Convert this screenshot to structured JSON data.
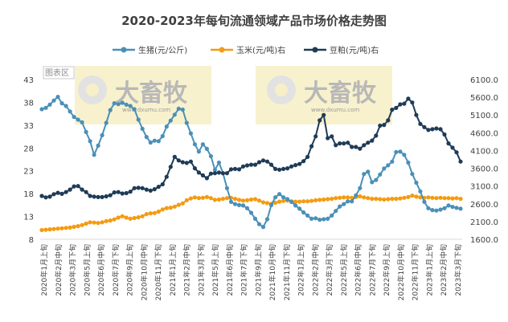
{
  "chart_data": {
    "type": "line",
    "title": "2020-2023年每旬流通领域产品市场价格走势图",
    "area_label": "图表区",
    "watermark": {
      "text": "大畜牧",
      "url": "www.dxumu.com"
    },
    "yaxis_left": {
      "ticks": [
        8,
        13,
        18,
        23,
        28,
        33,
        38,
        43
      ],
      "range": [
        8,
        43
      ]
    },
    "yaxis_right": {
      "ticks": [
        "1600.0",
        "2100.0",
        "2600.0",
        "3100.0",
        "3600.0",
        "4100.0",
        "4600.0",
        "5100.0",
        "5600.0",
        "6100.0"
      ],
      "range": [
        1600,
        6100
      ]
    },
    "x_labels": [
      "2020年1月上旬",
      "2020年2月中旬",
      "2020年3月下旬",
      "2020年5月上旬",
      "2020年6月中旬",
      "2020年7月下旬",
      "2020年9月上旬",
      "2020年10月中旬",
      "2020年11月下旬",
      "2021年1月上旬",
      "2021年2月中旬",
      "2021年3月下旬",
      "2021年5月上旬",
      "2021年6月中旬",
      "2021年7月下旬",
      "2021年9月上旬",
      "2021年10月中旬",
      "2021年11月下旬",
      "2022年1月上旬",
      "2022年2月中旬",
      "2022年3月下旬",
      "2022年5月上旬",
      "2022年6月中旬",
      "2022年7月下旬",
      "2022年9月上旬",
      "2022年10月中旬",
      "2022年11月下旬",
      "2023年1月上旬",
      "2023年2月中旬",
      "2023年3月下旬"
    ],
    "series": [
      {
        "name": "生猪(元/公斤)",
        "axis": "left",
        "color": "#4a90b8",
        "values": [
          36.5,
          36.8,
          37.5,
          38.4,
          39.2,
          37.8,
          37.2,
          36.0,
          34.8,
          34.2,
          33.6,
          31.5,
          29.5,
          26.5,
          28.5,
          30.8,
          33.5,
          36.3,
          37.8,
          37.6,
          37.9,
          37.5,
          37.2,
          36.5,
          34.2,
          32.2,
          30.4,
          29.2,
          29.6,
          29.5,
          30.6,
          32.7,
          34.0,
          35.3,
          36.6,
          36.4,
          33.5,
          31.2,
          28.8,
          27.2,
          28.8,
          27.8,
          26.2,
          23.2,
          24.8,
          22.5,
          19.2,
          16.2,
          15.7,
          15.5,
          15.4,
          14.8,
          13.8,
          12.5,
          11.3,
          10.7,
          12.4,
          15.5,
          17.2,
          17.9,
          17.2,
          16.8,
          16.2,
          15.4,
          14.7,
          13.9,
          13.2,
          12.5,
          12.6,
          12.3,
          12.4,
          12.5,
          13.2,
          14.2,
          15.2,
          15.7,
          16.3,
          16.3,
          17.6,
          19.2,
          22.3,
          22.8,
          20.5,
          21.0,
          22.2,
          23.5,
          24.2,
          25.0,
          27.1,
          27.2,
          26.5,
          24.8,
          22.3,
          20.4,
          18.5,
          16.2,
          14.8,
          14.4,
          14.3,
          14.5,
          14.8,
          15.4,
          15.1,
          14.9,
          14.7
        ]
      },
      {
        "name": "玉米(元/吨)右",
        "axis": "right",
        "color": "#f39c12",
        "values": [
          1860,
          1870,
          1880,
          1890,
          1900,
          1910,
          1920,
          1930,
          1950,
          1970,
          2000,
          2040,
          2080,
          2070,
          2060,
          2080,
          2110,
          2130,
          2160,
          2210,
          2250,
          2210,
          2180,
          2200,
          2220,
          2250,
          2310,
          2330,
          2340,
          2380,
          2440,
          2480,
          2490,
          2520,
          2570,
          2610,
          2700,
          2750,
          2780,
          2760,
          2770,
          2790,
          2760,
          2710,
          2720,
          2740,
          2760,
          2770,
          2740,
          2710,
          2690,
          2700,
          2720,
          2730,
          2690,
          2640,
          2620,
          2600,
          2630,
          2660,
          2680,
          2690,
          2670,
          2660,
          2660,
          2670,
          2670,
          2680,
          2700,
          2710,
          2720,
          2730,
          2740,
          2760,
          2770,
          2780,
          2780,
          2770,
          2790,
          2810,
          2780,
          2760,
          2740,
          2740,
          2730,
          2720,
          2730,
          2740,
          2740,
          2750,
          2770,
          2790,
          2830,
          2800,
          2780,
          2770,
          2780,
          2770,
          2760,
          2770,
          2760,
          2760,
          2750,
          2760,
          2740
        ]
      },
      {
        "name": "豆粕(元/吨)右",
        "axis": "right",
        "color": "#1f3b57",
        "values": [
          2820,
          2780,
          2800,
          2870,
          2910,
          2880,
          2930,
          3000,
          3090,
          3100,
          3000,
          2930,
          2820,
          2800,
          2790,
          2790,
          2810,
          2840,
          2920,
          2930,
          2890,
          2900,
          2940,
          3040,
          3050,
          3040,
          3000,
          2970,
          3010,
          3080,
          3150,
          3360,
          3640,
          3920,
          3820,
          3770,
          3750,
          3790,
          3600,
          3480,
          3400,
          3320,
          3450,
          3460,
          3480,
          3460,
          3460,
          3570,
          3580,
          3570,
          3650,
          3680,
          3700,
          3700,
          3770,
          3820,
          3790,
          3700,
          3580,
          3560,
          3580,
          3600,
          3650,
          3690,
          3720,
          3800,
          3920,
          4220,
          4500,
          4950,
          5100,
          4450,
          4500,
          4250,
          4300,
          4300,
          4320,
          4200,
          4200,
          4150,
          4250,
          4320,
          4380,
          4520,
          4800,
          4820,
          4950,
          5250,
          5300,
          5400,
          5420,
          5560,
          5450,
          5100,
          4850,
          4760,
          4680,
          4700,
          4720,
          4700,
          4550,
          4300,
          4180,
          4050,
          3790
        ]
      }
    ]
  }
}
